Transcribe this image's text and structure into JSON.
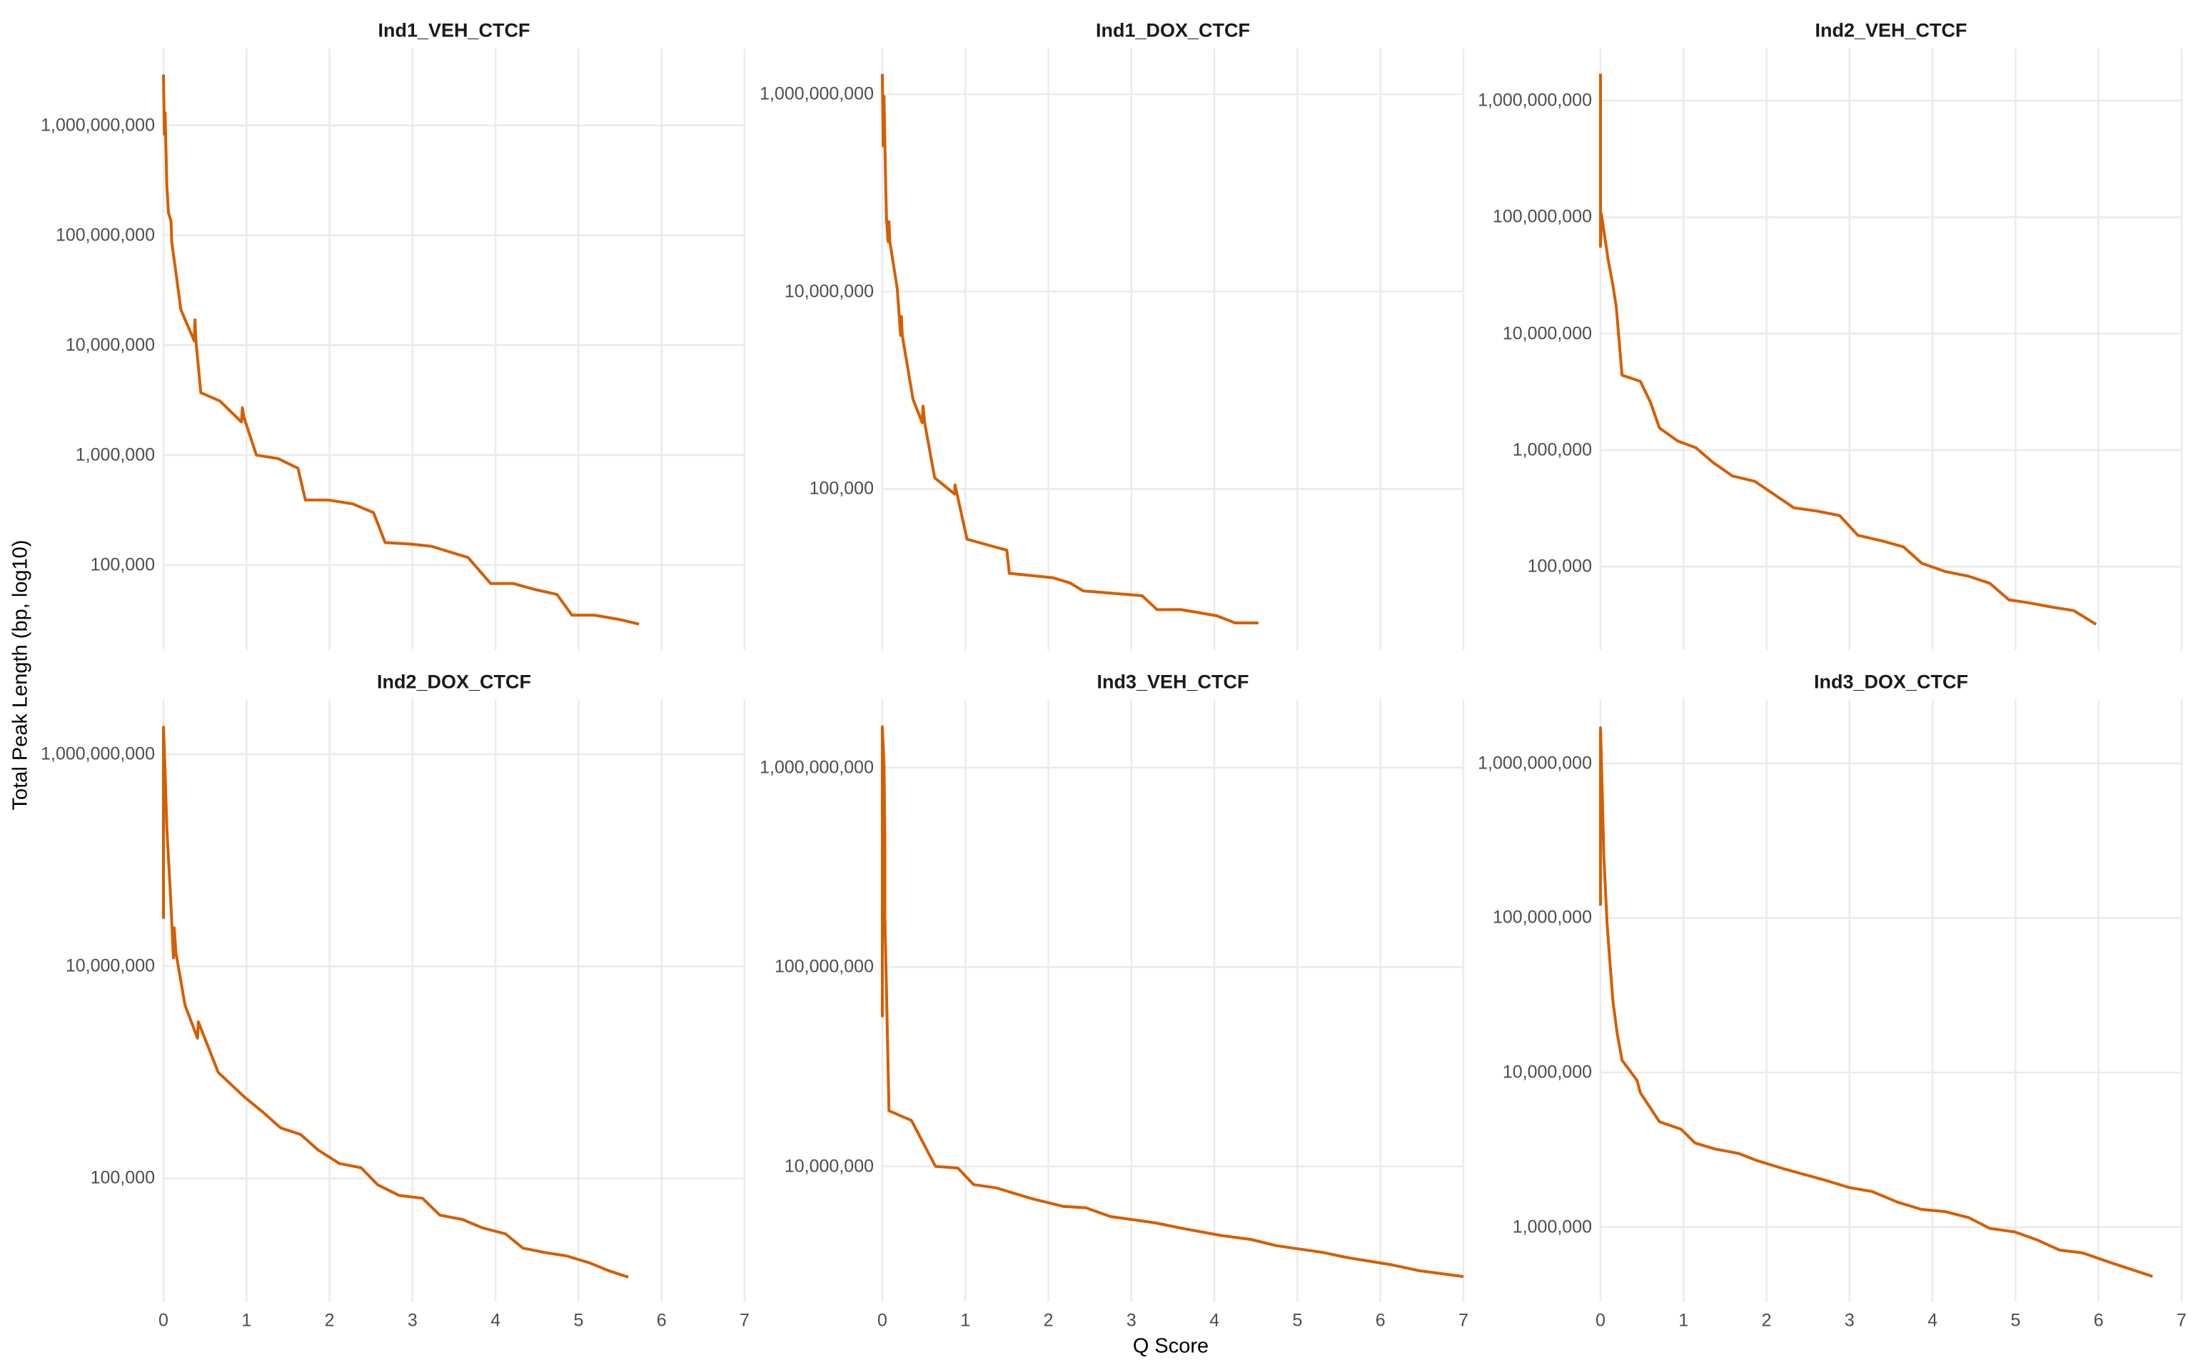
{
  "chart_data": {
    "type": "line",
    "xlabel": "Q Score",
    "ylabel": "Total Peak Length (bp, log10)",
    "y_scale": "log10",
    "grid": true,
    "legend": "none",
    "line_color": "#D55E00",
    "xlim": [
      0,
      7
    ],
    "x_ticks": [
      0,
      1,
      2,
      3,
      4,
      5,
      6,
      7
    ],
    "x_tick_labels": [
      "0",
      "1",
      "2",
      "3",
      "4",
      "5",
      "6",
      "7"
    ],
    "panels": [
      {
        "title": "Ind1_VEH_CTCF",
        "ylim": [
          16600,
          5000000000
        ],
        "y_ticks": [
          100000,
          1000000,
          10000000,
          100000000,
          1000000000
        ],
        "y_tick_labels": [
          "100,000",
          "1,000,000",
          "10,000,000",
          "100,000,000",
          "1,000,000,000"
        ],
        "x": [
          0,
          0.01,
          0.02,
          0.04,
          0.06,
          0.09,
          0.1,
          0.21,
          0.37,
          0.38,
          0.39,
          0.45,
          0.68,
          0.94,
          0.95,
          0.97,
          1.12,
          1.38,
          1.62,
          1.71,
          1.99,
          2.28,
          2.53,
          2.67,
          2.98,
          3.23,
          3.67,
          3.94,
          4.21,
          4.47,
          4.74,
          4.92,
          5.19,
          5.49,
          5.73
        ],
        "y": [
          2900000000.0,
          830000000.0,
          1300000000.0,
          280000000.0,
          160000000.0,
          135000000.0,
          87000000.0,
          21000000.0,
          11000000.0,
          17000000.0,
          11000000.0,
          3700000.0,
          3100000.0,
          2000000.0,
          2700000.0,
          2200000.0,
          1000000.0,
          930000.0,
          760000.0,
          390000.0,
          390000.0,
          360000.0,
          300000.0,
          160000.0,
          155000.0,
          148000.0,
          117000.0,
          68000.0,
          68000.0,
          60000.0,
          54000.0,
          35000.0,
          35000.0,
          32000.0,
          29000.0
        ]
      },
      {
        "title": "Ind1_DOX_CTCF",
        "ylim": [
          2300,
          2900000000
        ],
        "y_ticks": [
          100000,
          10000000,
          1000000000
        ],
        "y_tick_labels": [
          "100,000",
          "10,000,000",
          "1,000,000,000"
        ],
        "x": [
          0,
          0.01,
          0.02,
          0.04,
          0.05,
          0.07,
          0.08,
          0.09,
          0.18,
          0.22,
          0.23,
          0.24,
          0.37,
          0.48,
          0.49,
          0.51,
          0.63,
          0.87,
          0.875,
          0.9,
          1.02,
          1.5,
          1.53,
          2.06,
          2.26,
          2.42,
          3.13,
          3.31,
          3.6,
          4.03,
          4.25,
          4.53
        ],
        "y": [
          1600000000.0,
          300000000.0,
          950000000.0,
          120000000.0,
          56000000.0,
          32000000.0,
          51000000.0,
          32000000.0,
          10700000.0,
          3600000.0,
          5600000.0,
          3600000.0,
          810000.0,
          470000.0,
          690000.0,
          470000.0,
          130000.0,
          89000.0,
          110000.0,
          89000.0,
          31000.0,
          24000.0,
          14000.0,
          12600.0,
          11200.0,
          9300.0,
          8300.0,
          6000.0,
          6000.0,
          5200.0,
          4400.0,
          4400.0
        ]
      },
      {
        "title": "Ind2_VEH_CTCF",
        "ylim": [
          19000,
          2800000000
        ],
        "y_ticks": [
          100000,
          1000000,
          10000000,
          100000000,
          1000000000
        ],
        "y_tick_labels": [
          "100,000",
          "1,000,000",
          "10,000,000",
          "100,000,000",
          "1,000,000,000"
        ],
        "x": [
          0,
          0,
          0.01,
          0.09,
          0.15,
          0.19,
          0.26,
          0.48,
          0.6,
          0.71,
          0.93,
          1.15,
          1.35,
          1.59,
          1.86,
          2.33,
          2.61,
          2.88,
          3.1,
          3.4,
          3.65,
          3.87,
          4.15,
          4.43,
          4.69,
          4.92,
          5.16,
          5.44,
          5.7,
          5.97
        ],
        "y": [
          1700000000.0,
          56000000.0,
          107000000.0,
          44000000.0,
          26000000.0,
          17000000.0,
          4400000.0,
          3900000.0,
          2600000.0,
          1550000.0,
          1200000.0,
          1050000.0,
          790000.0,
          600000.0,
          540000.0,
          320000.0,
          300000.0,
          275000.0,
          186000.0,
          166000.0,
          148000.0,
          107000.0,
          91000.0,
          83000.0,
          72000.0,
          52000.0,
          49000.0,
          45000.0,
          42000.0,
          32000.0
        ]
      },
      {
        "title": "Ind2_DOX_CTCF",
        "ylim": [
          6900,
          3300000000
        ],
        "y_ticks": [
          100000,
          10000000,
          1000000000
        ],
        "y_tick_labels": [
          "100,000",
          "10,000,000",
          "1,000,000,000"
        ],
        "x": [
          0,
          0,
          0.02,
          0.04,
          0.08,
          0.12,
          0.13,
          0.15,
          0.26,
          0.41,
          0.42,
          0.66,
          0.98,
          1.2,
          1.41,
          1.65,
          1.86,
          2.12,
          2.38,
          2.58,
          2.84,
          3.12,
          3.33,
          3.6,
          3.85,
          4.12,
          4.33,
          4.59,
          4.85,
          5.13,
          5.36,
          5.6
        ],
        "y": [
          28000000.0,
          1800000000.0,
          680000000.0,
          200000000.0,
          55000000.0,
          12000000.0,
          23000000.0,
          13500000.0,
          4300000.0,
          2100000.0,
          3000000.0,
          1000000.0,
          580000.0,
          420000.0,
          300000.0,
          260000.0,
          186000.0,
          138000.0,
          126000.0,
          87000.0,
          69000.0,
          65000.0,
          45000.0,
          41000.0,
          34000.0,
          30000.0,
          22000.0,
          20000.0,
          18600.0,
          16000.0,
          13500.0,
          11700.0
        ]
      },
      {
        "title": "Ind3_VEH_CTCF",
        "ylim": [
          2100000,
          2200000000
        ],
        "y_ticks": [
          10000000,
          100000000,
          1000000000
        ],
        "y_tick_labels": [
          "10,000,000",
          "100,000,000",
          "1,000,000,000"
        ],
        "x": [
          0,
          0,
          0.02,
          0.03,
          0.03,
          0.05,
          0.08,
          0.35,
          0.64,
          0.91,
          1.1,
          1.37,
          1.79,
          2.18,
          2.45,
          2.75,
          3.02,
          3.3,
          3.6,
          4.08,
          4.44,
          4.75,
          5.31,
          5.58,
          6.15,
          6.46,
          7.0
        ],
        "y": [
          56000000.0,
          1600000000.0,
          1050000000.0,
          440000000.0,
          180000000.0,
          76000000.0,
          19000000.0,
          17000000.0,
          10000000.0,
          9800000.0,
          8100000.0,
          7800000.0,
          6900000.0,
          6300000.0,
          6200000.0,
          5600000.0,
          5400000.0,
          5200000.0,
          4900000.0,
          4500000.0,
          4300000.0,
          4000000.0,
          3700000.0,
          3500000.0,
          3200000.0,
          3000000.0,
          2800000.0
        ]
      },
      {
        "title": "Ind3_DOX_CTCF",
        "ylim": [
          330000,
          2600000000
        ],
        "y_ticks": [
          1000000,
          10000000,
          100000000,
          1000000000
        ],
        "y_tick_labels": [
          "1,000,000",
          "10,000,000",
          "100,000,000",
          "1,000,000,000"
        ],
        "x": [
          0,
          0,
          0.02,
          0.04,
          0.08,
          0.11,
          0.15,
          0.2,
          0.26,
          0.44,
          0.48,
          0.71,
          0.97,
          1.14,
          1.38,
          1.66,
          1.88,
          2.19,
          2.44,
          2.72,
          3.0,
          3.27,
          3.58,
          3.87,
          4.15,
          4.44,
          4.69,
          4.99,
          5.25,
          5.53,
          5.81,
          6.14,
          6.65
        ],
        "y": [
          120000000.0,
          1700000000.0,
          680000000.0,
          250000000.0,
          91000000.0,
          55000000.0,
          29000000.0,
          18000000.0,
          12000000.0,
          8900000.0,
          7400000.0,
          4800000.0,
          4300000.0,
          3500000.0,
          3200000.0,
          3000000.0,
          2700000.0,
          2400000.0,
          2200000.0,
          2000000.0,
          1800000.0,
          1700000.0,
          1450000.0,
          1300000.0,
          1260000.0,
          1150000.0,
          980000.0,
          930000.0,
          830000.0,
          710000.0,
          680000.0,
          590000.0,
          480000.0
        ]
      }
    ]
  }
}
